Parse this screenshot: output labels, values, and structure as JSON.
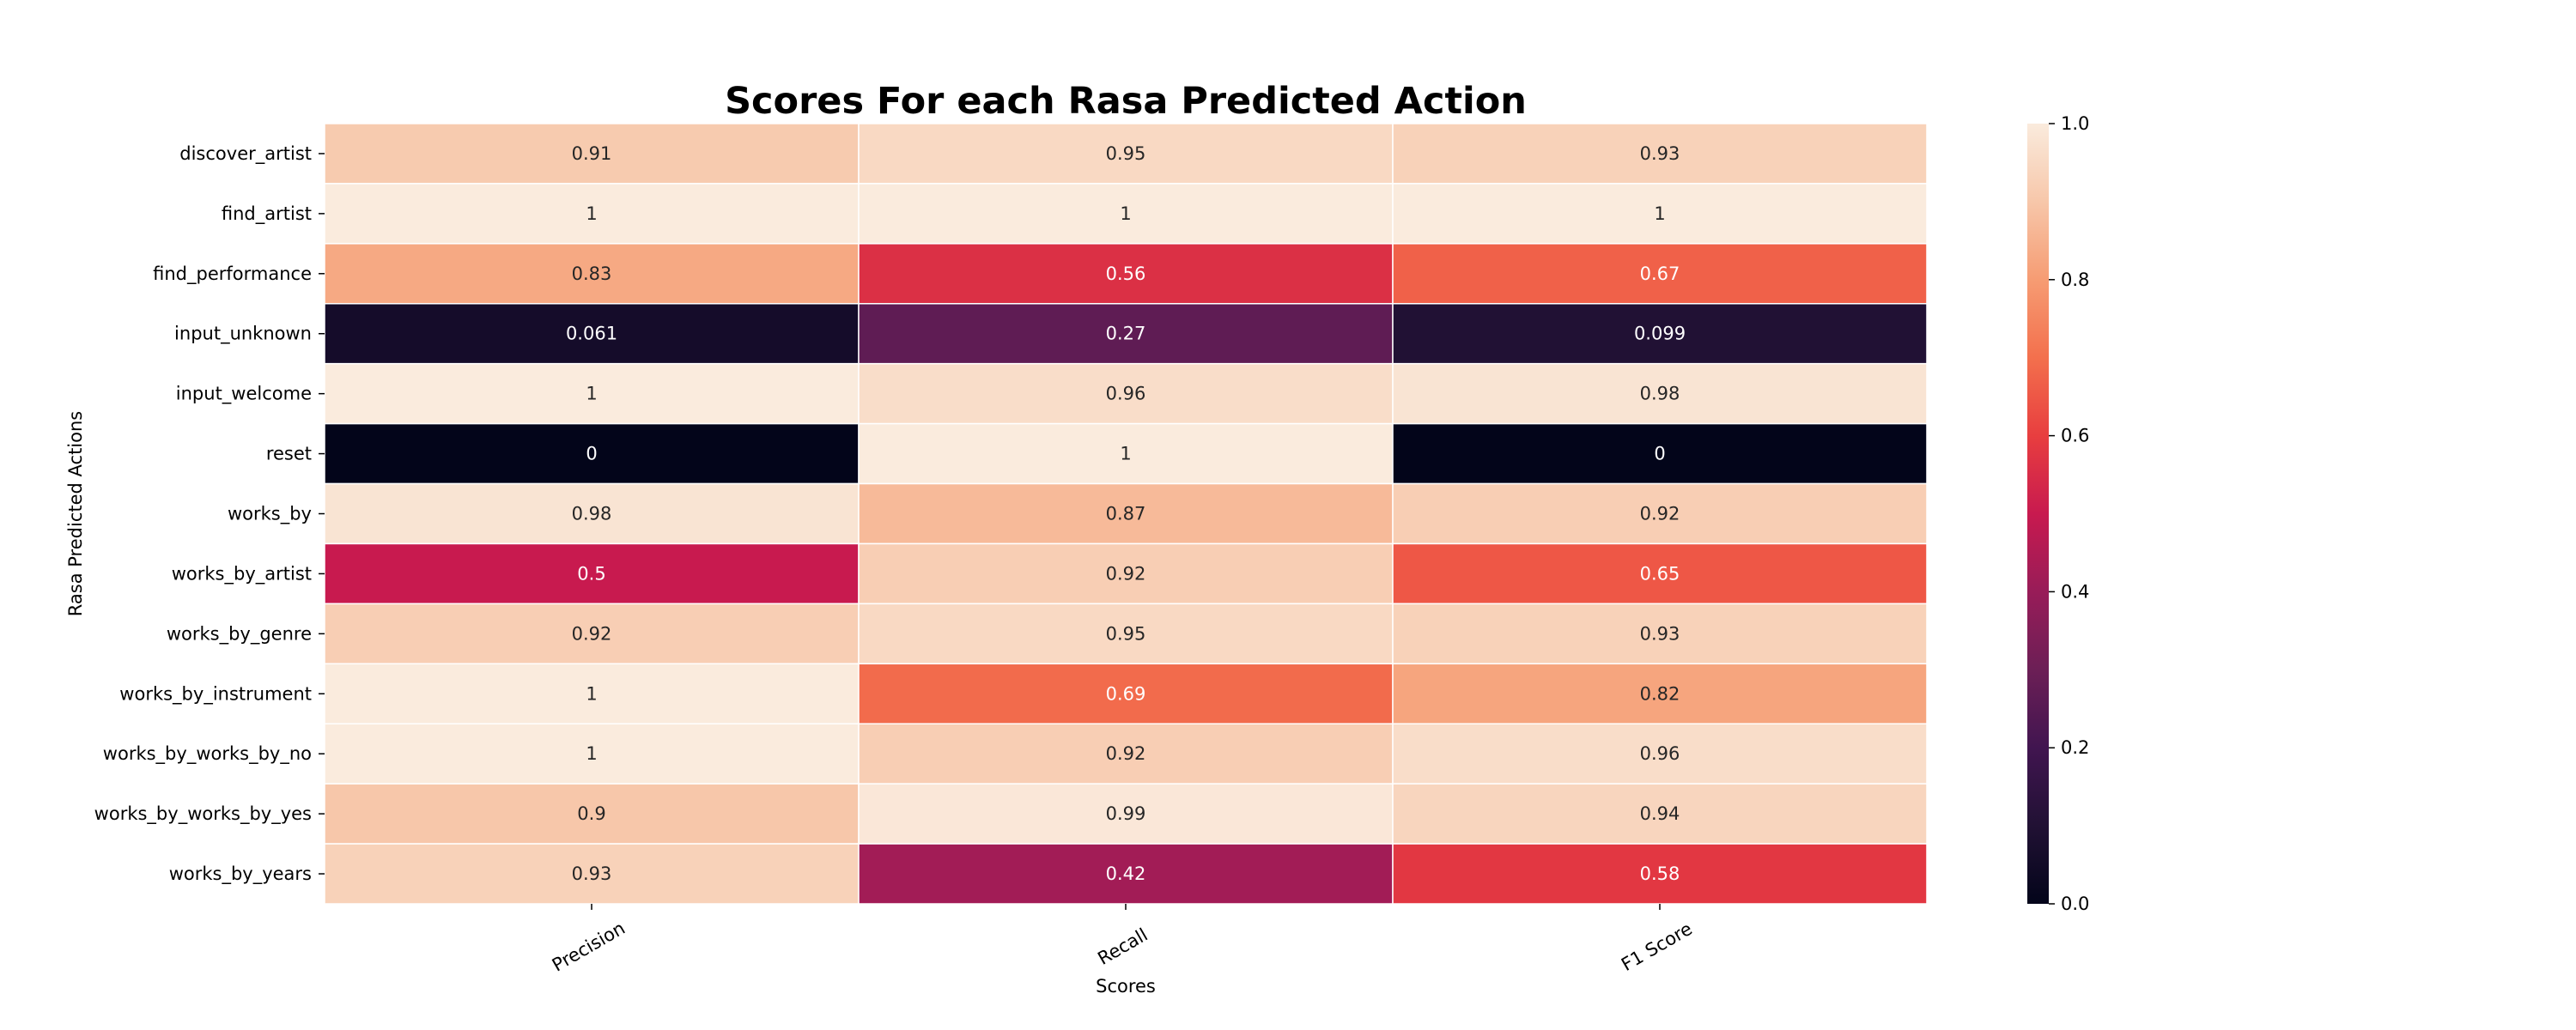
{
  "chart_data": {
    "type": "heatmap",
    "title": "Scores For each Rasa Predicted Action",
    "xlabel": "Scores",
    "ylabel": "Rasa Predicted Actions",
    "columns": [
      "Precision",
      "Recall",
      "F1 Score"
    ],
    "rows": [
      "discover_artist",
      "find_artist",
      "find_performance",
      "input_unknown",
      "input_welcome",
      "reset",
      "works_by",
      "works_by_artist",
      "works_by_genre",
      "works_by_instrument",
      "works_by_works_by_no",
      "works_by_works_by_yes",
      "works_by_years"
    ],
    "values": [
      [
        0.91,
        0.95,
        0.93
      ],
      [
        1,
        1,
        1
      ],
      [
        0.83,
        0.56,
        0.67
      ],
      [
        0.061,
        0.27,
        0.099
      ],
      [
        1,
        0.96,
        0.98
      ],
      [
        0,
        1,
        0
      ],
      [
        0.98,
        0.87,
        0.92
      ],
      [
        0.5,
        0.92,
        0.65
      ],
      [
        0.92,
        0.95,
        0.93
      ],
      [
        1,
        0.69,
        0.82
      ],
      [
        1,
        0.92,
        0.96
      ],
      [
        0.9,
        0.99,
        0.94
      ],
      [
        0.93,
        0.42,
        0.58
      ]
    ],
    "cell_labels": [
      [
        "0.91",
        "0.95",
        "0.93"
      ],
      [
        "1",
        "1",
        "1"
      ],
      [
        "0.83",
        "0.56",
        "0.67"
      ],
      [
        "0.061",
        "0.27",
        "0.099"
      ],
      [
        "1",
        "0.96",
        "0.98"
      ],
      [
        "0",
        "1",
        "0"
      ],
      [
        "0.98",
        "0.87",
        "0.92"
      ],
      [
        "0.5",
        "0.92",
        "0.65"
      ],
      [
        "0.92",
        "0.95",
        "0.93"
      ],
      [
        "1",
        "0.69",
        "0.82"
      ],
      [
        "1",
        "0.92",
        "0.96"
      ],
      [
        "0.9",
        "0.99",
        "0.94"
      ],
      [
        "0.93",
        "0.42",
        "0.58"
      ]
    ],
    "colorbar": {
      "colormap": "rocket",
      "range": [
        0.0,
        1.0
      ],
      "ticks": [
        0.0,
        0.2,
        0.4,
        0.6,
        0.8,
        1.0
      ],
      "tick_labels": [
        "0.0",
        "0.2",
        "0.4",
        "0.6",
        "0.8",
        "1.0"
      ]
    },
    "grid": false
  }
}
